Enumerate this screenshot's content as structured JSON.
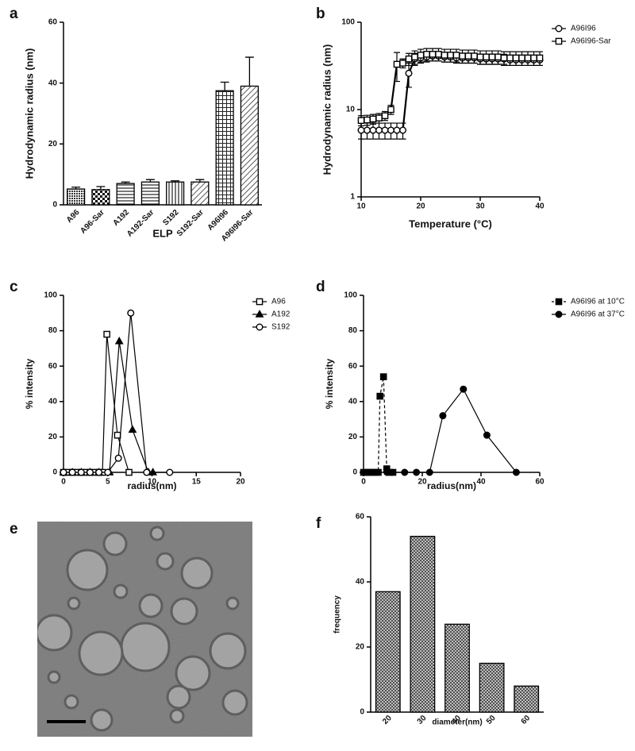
{
  "chart_data": [
    {
      "type": "bar",
      "label": "a",
      "xlabel": "ELP",
      "ylabel": "Hydrodynamic radius (nm)",
      "categories": [
        "A96",
        "A96-Sar",
        "A192",
        "A192-Sar",
        "S192",
        "S192-Sar",
        "A96I96",
        "A96I96-Sar"
      ],
      "values": [
        5.2,
        5,
        7,
        7.5,
        7.5,
        7.5,
        37.5,
        39
      ],
      "errors": [
        0.6,
        1,
        0.5,
        0.8,
        0.4,
        0.8,
        2.8,
        9.5
      ],
      "color": "#000000",
      "ylim": [
        0,
        60
      ],
      "yticks": [
        0,
        20,
        40,
        60
      ]
    },
    {
      "type": "line",
      "label": "b",
      "xlabel": "Temperature (°C)",
      "ylabel": "Hydrodynamic radius (nm)",
      "ylog": true,
      "xlim": [
        10,
        40
      ],
      "xticks": [
        10,
        20,
        30,
        40
      ],
      "ylim": [
        1,
        100
      ],
      "yticks": [
        1,
        10,
        100
      ],
      "legend": "right",
      "series": [
        {
          "name": "A96I96",
          "color": "#000000",
          "marker": "circle",
          "fill": "#ffffff",
          "dash": false,
          "x": [
            10,
            11,
            12,
            13,
            14,
            15,
            16,
            17,
            18,
            19,
            20,
            21,
            22,
            23,
            24,
            25,
            26,
            27,
            28,
            29,
            30,
            31,
            32,
            33,
            34,
            35,
            36,
            37,
            38,
            39,
            40
          ],
          "values": [
            5.8,
            5.8,
            5.8,
            5.8,
            5.8,
            5.8,
            5.8,
            5.8,
            26,
            38,
            39,
            40,
            41,
            41,
            40,
            40,
            39,
            39,
            39,
            39,
            38,
            38,
            38,
            38,
            38,
            37,
            37,
            37,
            37,
            37,
            37
          ],
          "errors": [
            1.2,
            1.2,
            1.2,
            1.2,
            1.2,
            1.2,
            1.2,
            1.2,
            8,
            6,
            5,
            5,
            5,
            5,
            5,
            5,
            5,
            5,
            5,
            5,
            5,
            5,
            5,
            5,
            5,
            5,
            5,
            5,
            5,
            5,
            5
          ]
        },
        {
          "name": "A96I96-Sar",
          "color": "#000000",
          "marker": "square",
          "fill": "#ffffff",
          "dash": false,
          "x": [
            10,
            11,
            12,
            13,
            14,
            15,
            16,
            17,
            18,
            19,
            20,
            21,
            22,
            23,
            24,
            25,
            26,
            27,
            28,
            29,
            30,
            31,
            32,
            33,
            34,
            35,
            36,
            37,
            38,
            39,
            40
          ],
          "values": [
            7.5,
            7.6,
            7.8,
            8,
            8.5,
            10,
            33,
            34,
            38,
            40,
            42,
            43,
            43,
            43,
            42,
            42,
            42,
            41,
            41,
            41,
            40,
            40,
            40,
            40,
            39,
            39,
            39,
            39,
            39,
            39,
            39
          ],
          "errors": [
            1,
            1,
            1,
            1,
            1,
            1.2,
            12,
            4,
            6,
            7,
            7,
            7,
            7,
            7,
            7,
            7,
            7,
            7,
            7,
            7,
            7,
            7,
            7,
            7,
            7,
            7,
            7,
            7,
            7,
            7,
            7
          ]
        }
      ]
    },
    {
      "type": "line",
      "label": "c",
      "xlabel": "radius(nm)",
      "ylabel": "% intensity",
      "xlim": [
        0,
        20
      ],
      "xticks": [
        0,
        5,
        10,
        15,
        20
      ],
      "ylim": [
        0,
        100
      ],
      "yticks": [
        0,
        20,
        40,
        60,
        80,
        100
      ],
      "legend": "right",
      "series": [
        {
          "name": "A96",
          "color": "#000000",
          "marker": "square",
          "fill": "#ffffff",
          "dash": false,
          "x": [
            0,
            0.5,
            1,
            1.5,
            2,
            2.5,
            3,
            3.5,
            4,
            4.4,
            4.9,
            6.1,
            7.4
          ],
          "values": [
            0,
            0,
            0,
            0,
            0,
            0,
            0,
            0,
            0,
            0,
            78,
            21,
            0
          ]
        },
        {
          "name": "A192",
          "color": "#000000",
          "marker": "triangle",
          "fill": "#000000",
          "dash": false,
          "x": [
            0,
            1,
            2,
            3,
            4,
            5.2,
            6.3,
            7.8,
            9.6,
            10.1
          ],
          "values": [
            0,
            0,
            0,
            0,
            0,
            0,
            74,
            24,
            0,
            0
          ]
        },
        {
          "name": "S192",
          "color": "#000000",
          "marker": "circle",
          "fill": "#ffffff",
          "dash": false,
          "x": [
            0,
            1,
            2,
            3,
            4,
            5,
            6.2,
            7.6,
            9.4,
            12
          ],
          "values": [
            0,
            0,
            0,
            0,
            0,
            0,
            8,
            90,
            0,
            0
          ]
        }
      ]
    },
    {
      "type": "line",
      "label": "d",
      "xlabel": "radius(nm)",
      "ylabel": "% intensity",
      "xlim": [
        0,
        60
      ],
      "xticks": [
        0,
        20,
        40,
        60
      ],
      "ylim": [
        0,
        100
      ],
      "yticks": [
        0,
        20,
        40,
        60,
        80,
        100
      ],
      "legend": "right",
      "series": [
        {
          "name": "A96I96 at 10°C",
          "color": "#000000",
          "marker": "square",
          "fill": "#000000",
          "dash": true,
          "x": [
            0,
            1,
            2,
            3,
            4,
            5,
            5.6,
            6.8,
            7.9,
            9,
            10
          ],
          "values": [
            0,
            0,
            0,
            0,
            0,
            0,
            43,
            54,
            2,
            0,
            0
          ]
        },
        {
          "name": "A96I96 at 37°C",
          "color": "#000000",
          "marker": "circle",
          "fill": "#000000",
          "dash": false,
          "x": [
            8,
            14,
            18,
            22.5,
            27,
            34,
            42,
            52
          ],
          "values": [
            0,
            0,
            0,
            0,
            32,
            47,
            21,
            0
          ]
        }
      ]
    },
    {
      "type": "image",
      "label": "e"
    },
    {
      "type": "bar",
      "label": "f",
      "xlabel": "diameter(nm)",
      "ylabel": "frequency",
      "categories": [
        "20",
        "30",
        "40",
        "50",
        "60"
      ],
      "values": [
        37,
        54,
        27,
        15,
        8
      ],
      "color": "#000000",
      "ylim": [
        0,
        60
      ],
      "yticks": [
        0,
        20,
        40,
        60
      ]
    }
  ]
}
